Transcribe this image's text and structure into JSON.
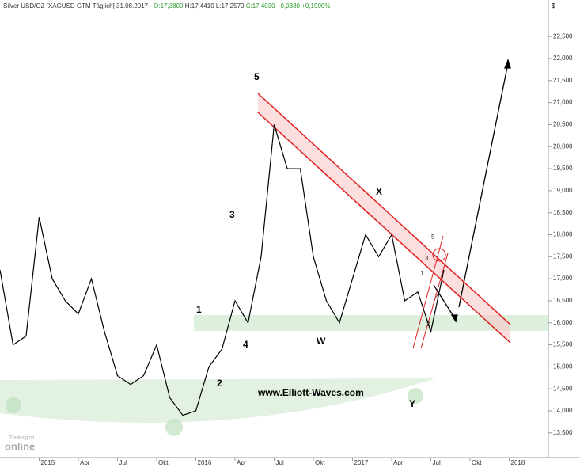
{
  "chart_data": {
    "type": "line",
    "title_parts": [
      "Silver USD/OZ [XAGUSD GTM  Täglich] 31.08.2017 - ",
      "O:17,3800",
      " H:17,4410",
      " L:17,2570",
      " C:17,4030",
      " +0,0330",
      " +0,1900%"
    ],
    "y_unit": "$",
    "x": [
      "2014-10",
      "2014-11",
      "2014-12",
      "2015-01",
      "2015-02",
      "2015-03",
      "2015-04",
      "2015-05",
      "2015-06",
      "2015-07",
      "2015-08",
      "2015-09",
      "2015-10",
      "2015-11",
      "2015-12",
      "2016-01",
      "2016-02",
      "2016-03",
      "2016-04",
      "2016-05",
      "2016-06",
      "2016-07",
      "2016-08",
      "2016-09",
      "2016-10",
      "2016-11",
      "2016-12",
      "2017-01",
      "2017-02",
      "2017-03",
      "2017-04",
      "2017-05",
      "2017-06",
      "2017-07",
      "2017-08"
    ],
    "series": [
      {
        "name": "Silver USD/OZ",
        "color": "#000000",
        "values": [
          17.2,
          15.5,
          15.7,
          18.4,
          17.0,
          16.5,
          16.2,
          17.0,
          15.8,
          14.8,
          14.6,
          14.8,
          15.5,
          14.3,
          13.9,
          14.0,
          15.0,
          15.4,
          16.5,
          16.0,
          17.5,
          20.5,
          19.5,
          19.5,
          17.5,
          16.5,
          16.0,
          17.0,
          18.0,
          17.5,
          18.0,
          16.5,
          16.7,
          15.8,
          17.2
        ]
      }
    ],
    "xlim": [
      "2014-10",
      "2018-04"
    ],
    "xticks": [
      {
        "value": "2015-01",
        "label": "2015"
      },
      {
        "value": "2015-04",
        "label": "Apr"
      },
      {
        "value": "2015-07",
        "label": "Jul"
      },
      {
        "value": "2015-10",
        "label": "Okt"
      },
      {
        "value": "2016-01",
        "label": "2016"
      },
      {
        "value": "2016-04",
        "label": "Apr"
      },
      {
        "value": "2016-07",
        "label": "Jul"
      },
      {
        "value": "2016-10",
        "label": "Okt"
      },
      {
        "value": "2017-01",
        "label": "2017"
      },
      {
        "value": "2017-04",
        "label": "Apr"
      },
      {
        "value": "2017-07",
        "label": "Jul"
      },
      {
        "value": "2017-10",
        "label": "Okt"
      },
      {
        "value": "2018-01",
        "label": "2018"
      }
    ],
    "ylim": [
      12.94,
      23.33
    ],
    "yticks": [
      {
        "value": 13.5,
        "label": "13,500"
      },
      {
        "value": 14,
        "label": "14,000"
      },
      {
        "value": 14.5,
        "label": "14,500"
      },
      {
        "value": 15,
        "label": "15,000"
      },
      {
        "value": 15.5,
        "label": "15,500"
      },
      {
        "value": 16,
        "label": "16,000"
      },
      {
        "value": 16.5,
        "label": "16,500"
      },
      {
        "value": 17,
        "label": "17,000"
      },
      {
        "value": 17.5,
        "label": "17,500"
      },
      {
        "value": 18,
        "label": "18,000"
      },
      {
        "value": 18.5,
        "label": "18,500"
      },
      {
        "value": 19,
        "label": "19,000"
      },
      {
        "value": 19.5,
        "label": "19,500"
      },
      {
        "value": 20,
        "label": "20,000"
      },
      {
        "value": 20.5,
        "label": "20,500"
      },
      {
        "value": 21,
        "label": "21,000"
      },
      {
        "value": 21.5,
        "label": "21,500"
      },
      {
        "value": 22,
        "label": "22,000"
      },
      {
        "value": 22.5,
        "label": "22,500"
      }
    ],
    "annotations": [
      "5",
      "3",
      "1",
      "2",
      "4",
      "W",
      "X",
      "Y",
      "www.Elliott-Waves.com",
      "1",
      "2",
      "3",
      "4",
      "5"
    ],
    "logo": [
      "Tradesignal",
      "online"
    ]
  }
}
